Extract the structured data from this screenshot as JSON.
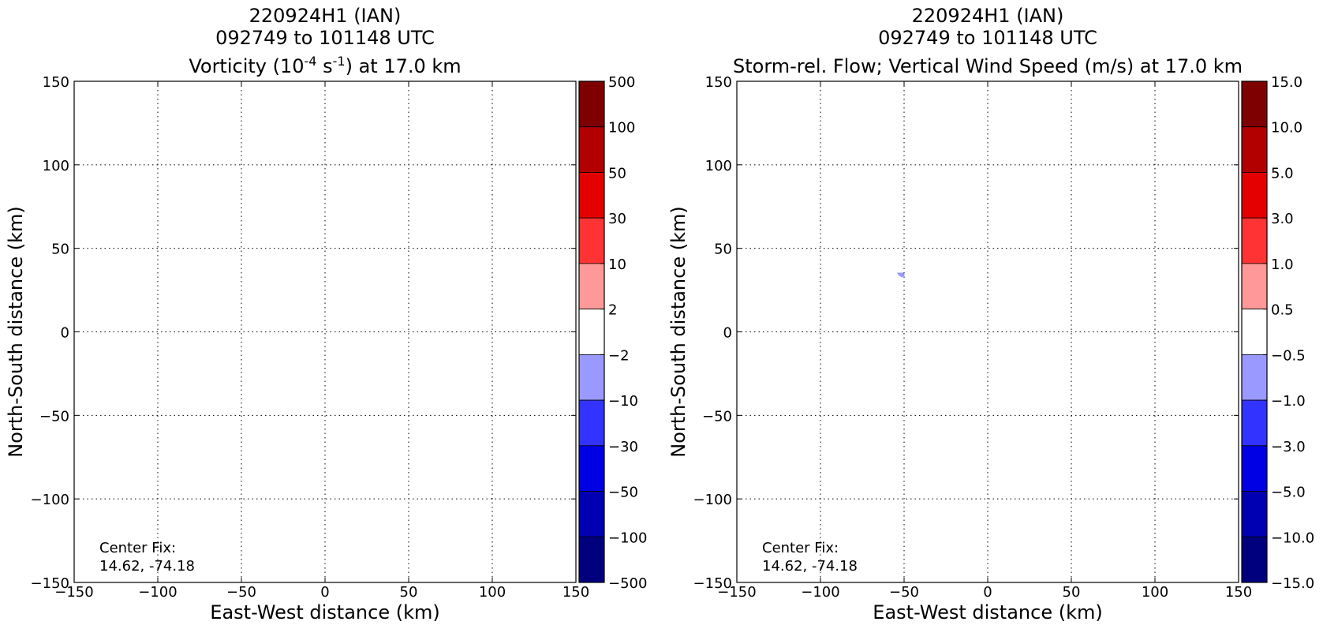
{
  "chart_data": [
    {
      "type": "heatmap",
      "title": [
        "220924H1 (IAN)",
        "092749 to 101148 UTC"
      ],
      "title_line3": {
        "pre": "Vorticity (10",
        "exp1": "-4",
        "mid": " s",
        "exp2": "-1",
        "post": ") at 17.0 km"
      },
      "xlabel": "East-West distance (km)",
      "ylabel": "North-South distance (km)",
      "xlim": [
        -150,
        150
      ],
      "ylim": [
        -150,
        150
      ],
      "xticks": [
        -150,
        -100,
        -50,
        0,
        50,
        100,
        150
      ],
      "yticks": [
        -150,
        -100,
        -50,
        0,
        50,
        100,
        150
      ],
      "xtick_labels": [
        "−150",
        "−100",
        "−50",
        "0",
        "50",
        "100",
        "150"
      ],
      "ytick_labels": [
        "−150",
        "−100",
        "−50",
        "0",
        "50",
        "100",
        "150"
      ],
      "grid": true,
      "annotation": [
        "Center Fix:",
        "14.62, -74.18"
      ],
      "colorbar": {
        "labels": [
          "500",
          "100",
          "50",
          "30",
          "10",
          "2",
          "−2",
          "−10",
          "−30",
          "−50",
          "−100",
          "−500"
        ],
        "colors": [
          "#7f0000",
          "#b20000",
          "#e50000",
          "#ff3333",
          "#ff9999",
          "#ffffff",
          "#9999ff",
          "#3333ff",
          "#0000e5",
          "#0000b2",
          "#00007f"
        ]
      },
      "features": []
    },
    {
      "type": "heatmap",
      "title": [
        "220924H1 (IAN)",
        "092749 to 101148 UTC",
        "Storm-rel. Flow; Vertical Wind Speed (m/s) at 17.0 km"
      ],
      "xlabel": "East-West distance (km)",
      "ylabel": "North-South distance (km)",
      "xlim": [
        -150,
        150
      ],
      "ylim": [
        -150,
        150
      ],
      "xticks": [
        -150,
        -100,
        -50,
        0,
        50,
        100,
        150
      ],
      "yticks": [
        -150,
        -100,
        -50,
        0,
        50,
        100,
        150
      ],
      "xtick_labels": [
        "−150",
        "−100",
        "−50",
        "0",
        "50",
        "100",
        "150"
      ],
      "ytick_labels": [
        "−150",
        "−100",
        "−50",
        "0",
        "50",
        "100",
        "150"
      ],
      "grid": true,
      "annotation": [
        "Center Fix:",
        "14.62, -74.18"
      ],
      "colorbar": {
        "labels": [
          "15.0",
          "10.0",
          "5.0",
          "3.0",
          "1.0",
          "0.5",
          "−0.5",
          "−1.0",
          "−3.0",
          "−5.0",
          "−10.0",
          "−15.0"
        ],
        "colors": [
          "#7f0000",
          "#b20000",
          "#e50000",
          "#ff3333",
          "#ff9999",
          "#ffffff",
          "#9999ff",
          "#3333ff",
          "#0000e5",
          "#0000b2",
          "#00007f"
        ]
      },
      "features": [
        {
          "x": -52,
          "y": 34,
          "value": -0.7,
          "color": "#9999ff"
        }
      ]
    }
  ]
}
